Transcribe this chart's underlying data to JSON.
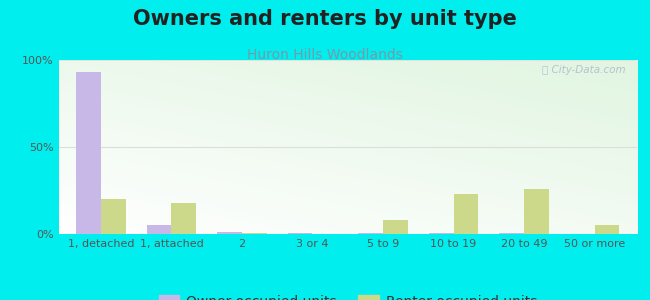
{
  "title": "Owners and renters by unit type",
  "subtitle": "Huron Hills Woodlands",
  "categories": [
    "1, detached",
    "1, attached",
    "2",
    "3 or 4",
    "5 to 9",
    "10 to 19",
    "20 to 49",
    "50 or more"
  ],
  "owner_values": [
    93,
    5,
    1,
    0.3,
    0.3,
    0.3,
    0.3,
    0
  ],
  "renter_values": [
    20,
    18,
    0.5,
    0,
    8,
    23,
    26,
    5
  ],
  "owner_color": "#c8b8e8",
  "renter_color": "#ccd88a",
  "background_color": "#00eeee",
  "ylim": [
    0,
    100
  ],
  "yticks": [
    0,
    50,
    100
  ],
  "ytick_labels": [
    "0%",
    "50%",
    "100%"
  ],
  "bar_width": 0.35,
  "title_fontsize": 15,
  "subtitle_fontsize": 10,
  "legend_fontsize": 10,
  "tick_fontsize": 8,
  "title_color": "#222222",
  "subtitle_color": "#7799aa",
  "watermark_color": "#aabbcc",
  "grid_color": "#dddddd"
}
